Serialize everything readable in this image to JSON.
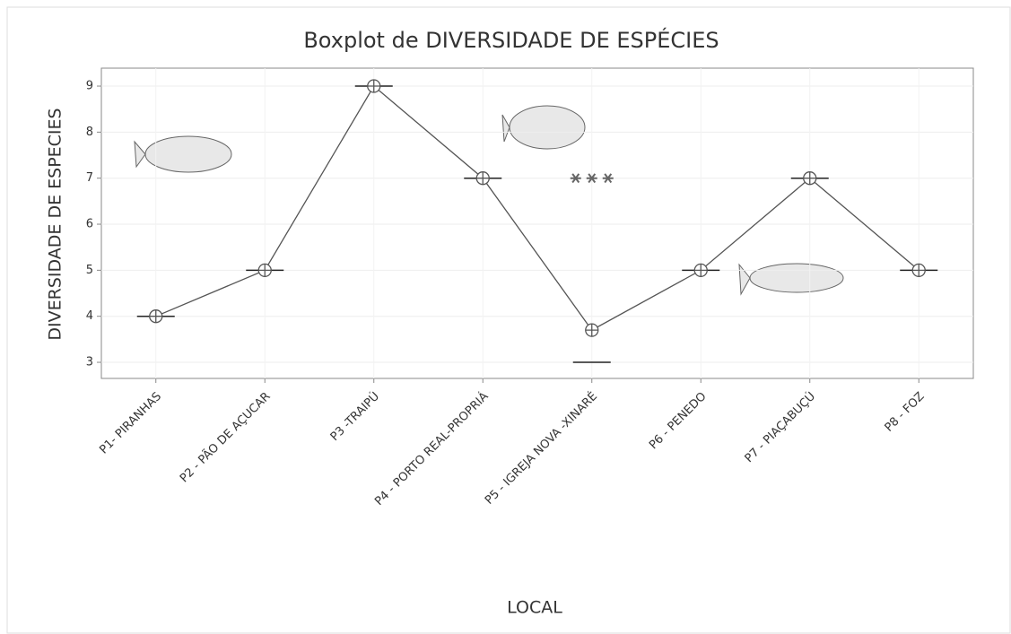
{
  "chart_data": {
    "type": "box",
    "title": "Boxplot de DIVERSIDADE DE ESPÉCIES",
    "x_label": "LOCAL",
    "y_label": "DIVERSIDADE DE ESPECIES",
    "categories": [
      "P1- PIRANHAS",
      "P2 - PÃO DE AÇUCAR",
      "P3 -TRAIPÚ",
      "P4 - PORTO REAL-PROPRIÁ",
      "P5 - IGREJA NOVA -XINARÉ",
      "P6 - PENEDO",
      "P7 - PIAÇABUÇÚ",
      "P8 - FOZ"
    ],
    "medians": [
      4,
      5,
      9,
      7,
      3,
      5,
      7,
      5
    ],
    "means": [
      4,
      5,
      9,
      7,
      3.7,
      5,
      7,
      5
    ],
    "outliers": [
      [],
      [],
      [],
      [],
      [
        7,
        7,
        7
      ],
      [],
      [],
      []
    ],
    "color": "#555555",
    "ylim": [
      2.65,
      9.39
    ],
    "yticks": [
      3,
      4,
      5,
      6,
      7,
      8,
      9
    ],
    "grid": true
  }
}
